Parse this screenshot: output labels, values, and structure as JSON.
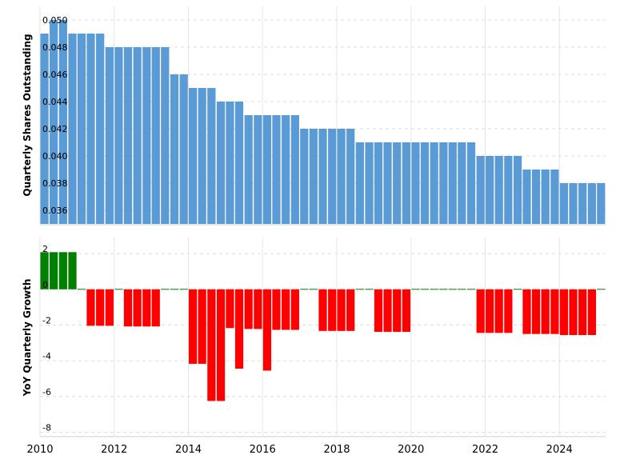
{
  "chart_data": [
    {
      "type": "bar",
      "ylabel": "Quarterly Shares Outstanding",
      "ylim": [
        0.035,
        0.051
      ],
      "yticks": [
        0.036,
        0.038,
        0.04,
        0.042,
        0.044,
        0.046,
        0.048,
        0.05
      ],
      "ytick_labels": [
        "0.036",
        "0.038",
        "0.040",
        "0.042",
        "0.044",
        "0.046",
        "0.048",
        "0.050"
      ],
      "grid": true,
      "colors": {
        "bar": "#5b9bd5"
      },
      "x": [
        "2010-03-31",
        "2010-06-30",
        "2010-09-30",
        "2010-12-31",
        "2011-03-31",
        "2011-06-30",
        "2011-09-30",
        "2011-12-31",
        "2012-03-31",
        "2012-06-30",
        "2012-09-30",
        "2012-12-31",
        "2013-03-31",
        "2013-06-30",
        "2013-09-30",
        "2013-12-31",
        "2014-03-31",
        "2014-06-30",
        "2014-09-30",
        "2014-12-31",
        "2015-03-31",
        "2015-06-30",
        "2015-09-30",
        "2015-12-31",
        "2016-03-31",
        "2016-06-30",
        "2016-09-30",
        "2016-12-31",
        "2017-03-31",
        "2017-06-30",
        "2017-09-30",
        "2017-12-31",
        "2018-03-31",
        "2018-06-30",
        "2018-09-30",
        "2018-12-31",
        "2019-03-31",
        "2019-06-30",
        "2019-09-30",
        "2019-12-31",
        "2020-03-31",
        "2020-06-30",
        "2020-09-30",
        "2020-12-31",
        "2021-03-31",
        "2021-06-30",
        "2021-09-30",
        "2021-12-31",
        "2022-03-31",
        "2022-06-30",
        "2022-09-30",
        "2022-12-31",
        "2023-03-31",
        "2023-06-30",
        "2023-09-30",
        "2023-12-31",
        "2024-03-31",
        "2024-06-30",
        "2024-09-30",
        "2024-12-31",
        "2025-03-31"
      ],
      "values": [
        0.049,
        0.05,
        0.05,
        0.049,
        0.049,
        0.049,
        0.049,
        0.048,
        0.048,
        0.048,
        0.048,
        0.048,
        0.048,
        0.048,
        0.046,
        0.046,
        0.045,
        0.045,
        0.045,
        0.044,
        0.044,
        0.044,
        0.043,
        0.043,
        0.043,
        0.043,
        0.043,
        0.043,
        0.042,
        0.042,
        0.042,
        0.042,
        0.042,
        0.042,
        0.041,
        0.041,
        0.041,
        0.041,
        0.041,
        0.041,
        0.041,
        0.041,
        0.041,
        0.041,
        0.041,
        0.041,
        0.041,
        0.04,
        0.04,
        0.04,
        0.04,
        0.04,
        0.039,
        0.039,
        0.039,
        0.039,
        0.038,
        0.038,
        0.038,
        0.038,
        0.038
      ]
    },
    {
      "type": "bar",
      "ylabel": "YoY Quarterly Growth",
      "ylim": [
        -8.2,
        2.9
      ],
      "yticks": [
        2,
        0,
        -2,
        -4,
        -6,
        -8
      ],
      "ytick_labels": [
        "2",
        "0",
        "-2",
        "-4",
        "-6",
        "-8"
      ],
      "grid": true,
      "colors": {
        "positive": "#008000",
        "negative": "#ff0000"
      },
      "x": [
        "2010-03-31",
        "2010-06-30",
        "2010-09-30",
        "2010-12-31",
        "2011-03-31",
        "2011-06-30",
        "2011-09-30",
        "2011-12-31",
        "2012-03-31",
        "2012-06-30",
        "2012-09-30",
        "2012-12-31",
        "2013-03-31",
        "2013-06-30",
        "2013-09-30",
        "2013-12-31",
        "2014-03-31",
        "2014-06-30",
        "2014-09-30",
        "2014-12-31",
        "2015-03-31",
        "2015-06-30",
        "2015-09-30",
        "2015-12-31",
        "2016-03-31",
        "2016-06-30",
        "2016-09-30",
        "2016-12-31",
        "2017-03-31",
        "2017-06-30",
        "2017-09-30",
        "2017-12-31",
        "2018-03-31",
        "2018-06-30",
        "2018-09-30",
        "2018-12-31",
        "2019-03-31",
        "2019-06-30",
        "2019-09-30",
        "2019-12-31",
        "2020-03-31",
        "2020-06-30",
        "2020-09-30",
        "2020-12-31",
        "2021-03-31",
        "2021-06-30",
        "2021-09-30",
        "2021-12-31",
        "2022-03-31",
        "2022-06-30",
        "2022-09-30",
        "2022-12-31",
        "2023-03-31",
        "2023-06-30",
        "2023-09-30",
        "2023-12-31",
        "2024-03-31",
        "2024-06-30",
        "2024-09-30",
        "2024-12-31",
        "2025-03-31"
      ],
      "values": [
        2.08,
        2.08,
        2.08,
        2.08,
        0,
        -2.04,
        -2.04,
        -2.04,
        0,
        -2.08,
        -2.08,
        -2.08,
        -2.08,
        0,
        0,
        0,
        -4.17,
        -4.17,
        -6.25,
        -6.25,
        -2.17,
        -4.44,
        -2.22,
        -2.22,
        -4.55,
        -2.27,
        -2.27,
        -2.27,
        0,
        0,
        -2.33,
        -2.33,
        -2.33,
        -2.33,
        0,
        0,
        -2.38,
        -2.38,
        -2.38,
        -2.38,
        0,
        0,
        0,
        0,
        0,
        0,
        0,
        -2.44,
        -2.44,
        -2.44,
        -2.44,
        0,
        -2.5,
        -2.5,
        -2.5,
        -2.5,
        -2.56,
        -2.56,
        -2.56,
        -2.56,
        0
      ]
    }
  ],
  "x_axis": {
    "tick_labels": [
      "2010",
      "2012",
      "2014",
      "2016",
      "2018",
      "2020",
      "2022",
      "2024"
    ],
    "range": [
      "2010-01-01",
      "2025-03-31"
    ]
  }
}
